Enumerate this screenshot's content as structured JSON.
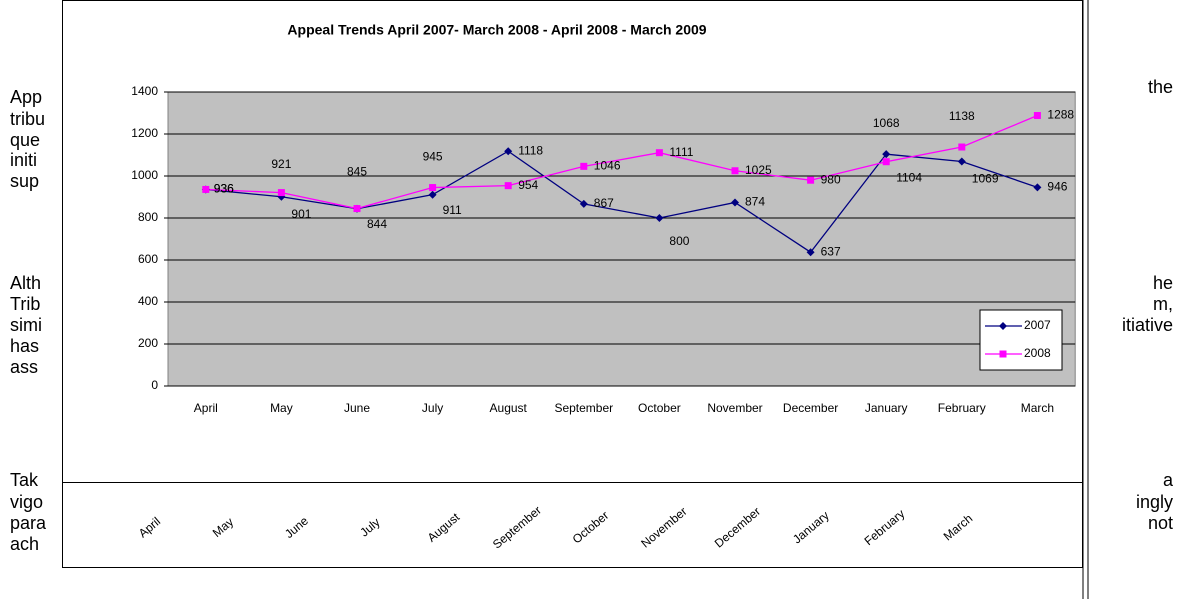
{
  "chart_data": {
    "type": "line",
    "title": "Appeal Trends April 2007- March 2008  - April 2008 - March 2009",
    "categories": [
      "April",
      "May",
      "June",
      "July",
      "August",
      "September",
      "October",
      "November",
      "December",
      "January",
      "February",
      "March"
    ],
    "series": [
      {
        "name": "2007",
        "color": "#000080",
        "marker": "diamond",
        "values": [
          936,
          901,
          844,
          911,
          1118,
          867,
          800,
          874,
          637,
          1104,
          1069,
          946
        ]
      },
      {
        "name": "2008",
        "color": "#ff00ff",
        "marker": "square",
        "values": [
          936,
          921,
          845,
          945,
          954,
          1046,
          1111,
          1025,
          980,
          1068,
          1138,
          1288
        ]
      }
    ],
    "ylim": [
      0,
      1400
    ],
    "yticks": [
      0,
      200,
      400,
      600,
      800,
      1000,
      1200,
      1400
    ],
    "grid": true,
    "legend": "right",
    "plot_background": "#c0c0c0"
  },
  "document": {
    "left": [
      "App",
      "tribu",
      "que",
      "initi",
      "sup",
      "Alth",
      "Trib",
      "simi",
      "has",
      "ass",
      "Tak",
      "vigo",
      "para",
      "ach"
    ],
    "right": [
      "the",
      "he",
      "m,",
      "itiative",
      "a",
      "ingly",
      "not"
    ]
  }
}
